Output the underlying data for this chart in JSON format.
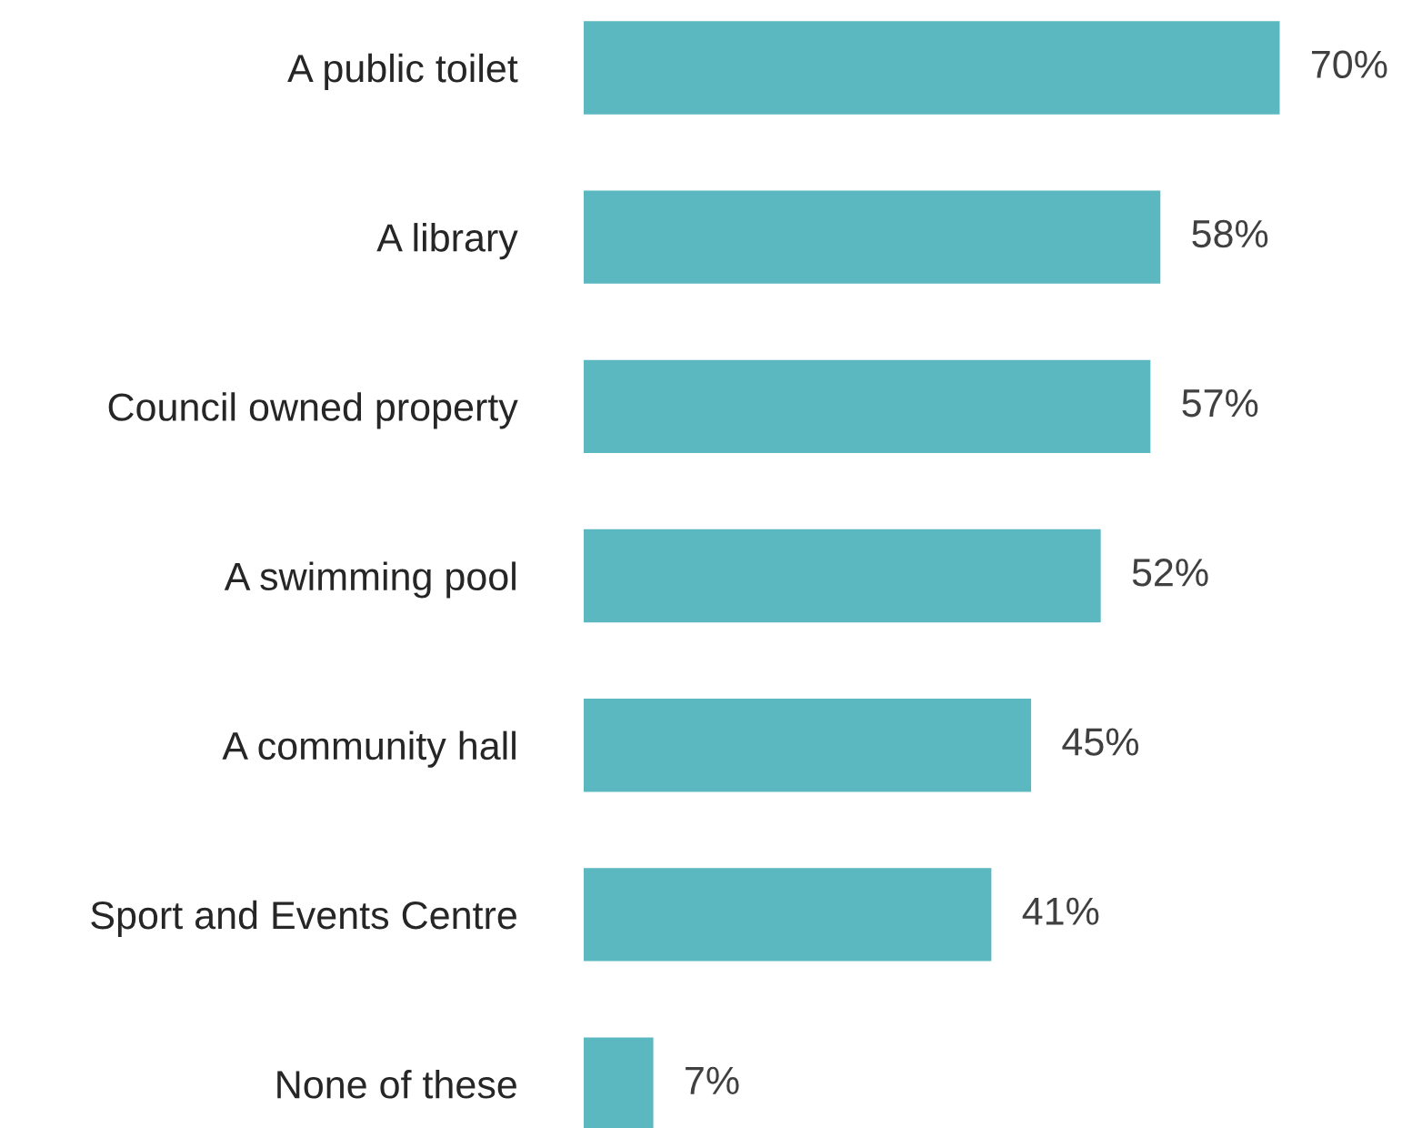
{
  "chart_data": {
    "type": "bar",
    "orientation": "horizontal",
    "categories": [
      "A public toilet",
      "A library",
      "Council owned property",
      "A swimming pool",
      "A community hall",
      "Sport and Events Centre",
      "None of these"
    ],
    "values": [
      70,
      58,
      57,
      52,
      45,
      41,
      7
    ],
    "value_labels": [
      "70%",
      "58%",
      "57%",
      "52%",
      "45%",
      "41%",
      "7%"
    ],
    "color": "#5bb7c0",
    "grid": false,
    "legend": false
  }
}
